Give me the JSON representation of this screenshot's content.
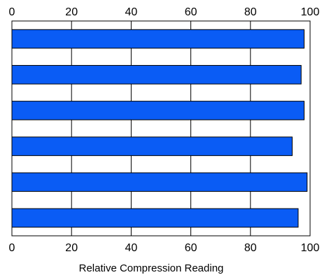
{
  "chart_data": {
    "type": "bar",
    "orientation": "horizontal",
    "categories": [
      "",
      "",
      "",
      "",
      "",
      ""
    ],
    "values": [
      98,
      97,
      98,
      94,
      99,
      96
    ],
    "xlabel": "Relative Compression Reading",
    "xlim": [
      0,
      100
    ],
    "ticks": [
      "0",
      "20",
      "40",
      "60",
      "80",
      "100"
    ],
    "tick_values": [
      0,
      20,
      40,
      60,
      80,
      100
    ],
    "grid": "vertical",
    "bar_color": "#0a5cf5"
  }
}
